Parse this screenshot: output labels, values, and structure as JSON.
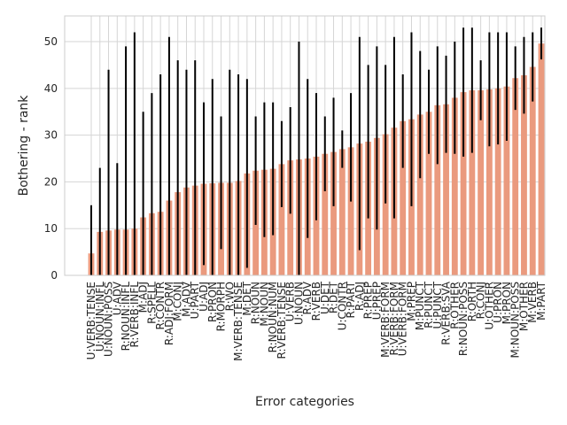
{
  "chart_data": {
    "type": "bar",
    "xlabel": "Error categories",
    "ylabel": "Bothering - rank",
    "categories": [
      "U:VERB:TENSE",
      "U:NOUN:INFL",
      "U:NOUN:POSS",
      "U:ADV",
      "R:NOUN:INFL",
      "R:VERB:INFL",
      "M:ADJ",
      "R:SPELL",
      "R:CONTR",
      "R:ADJ:FORM",
      "M:CONJ",
      "M:ADV",
      "U:PART",
      "U:ADJ",
      "R:PRON",
      "R:MORPH",
      "R:WO",
      "M:VERB:TENSE",
      "M:DET",
      "R:NOUN",
      "M:NOUN",
      "R:NOUN:NUM",
      "R:VERB:TENSE",
      "U:VERB",
      "U:NOUN",
      "R:ADV",
      "R:VERB",
      "U:DET",
      "R:DET",
      "U:CONTR",
      "R:PART",
      "R:ADJ",
      "R:PREP",
      "U:PREP",
      "M:VERB:FORM",
      "R:VERB:FORM",
      "U:VERB:FORM",
      "M:PREP",
      "M:PUNCT",
      "R:PUNCT",
      "U:PUNCT",
      "R:VERB:SVA",
      "R:OTHER",
      "R:NOUN:POSS",
      "R:ORTH",
      "R:CONJ",
      "U:OTHER",
      "U:PRON",
      "M:PRON",
      "M:NOUN:POSS",
      "M:OTHER",
      "M:VERB",
      "M:PART"
    ],
    "values": [
      4.7,
      9.3,
      9.6,
      9.8,
      9.8,
      10.0,
      12.4,
      13.3,
      13.6,
      16.0,
      17.8,
      18.8,
      19.2,
      19.6,
      19.7,
      19.8,
      19.8,
      20.2,
      21.8,
      22.4,
      22.6,
      22.8,
      23.8,
      24.6,
      24.8,
      25.0,
      25.4,
      26.0,
      26.4,
      27.0,
      27.4,
      28.2,
      28.6,
      29.4,
      30.2,
      31.6,
      33.0,
      33.4,
      34.4,
      35.0,
      36.4,
      36.6,
      38.0,
      39.2,
      39.6,
      39.6,
      39.8,
      40.0,
      40.4,
      42.2,
      42.8,
      44.6,
      49.6
    ],
    "errors": [
      10.3,
      13.7,
      34.4,
      14.2,
      39.2,
      42,
      22.6,
      25.7,
      29.4,
      35,
      28.2,
      25.2,
      26.8,
      17.4,
      22.3,
      14.2,
      24.2,
      22.8,
      20.2,
      11.6,
      14.4,
      14.2,
      9.2,
      11.4,
      25.2,
      17,
      13.6,
      8,
      11.6,
      4,
      11.6,
      22.8,
      16.4,
      19.6,
      14.8,
      19.4,
      10,
      18.6,
      13.6,
      9,
      12.6,
      10.4,
      12,
      13.8,
      13.4,
      6.4,
      12.2,
      12,
      11.6,
      6.8,
      8.2,
      7.4,
      3.4
    ],
    "color": "#ea9a7e",
    "error_color": "#000000",
    "ylim": [
      0,
      55.5
    ],
    "yticks": [
      0,
      10,
      20,
      30,
      40,
      50
    ],
    "grid": true
  }
}
